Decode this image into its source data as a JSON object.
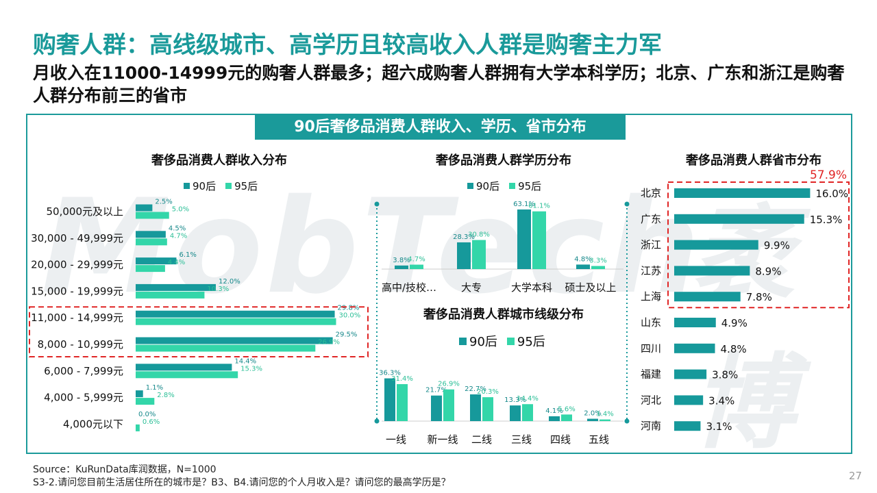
{
  "page": {
    "title": "购奢人群：高线级城市、高学历且较高收入人群是购奢主力军",
    "subtitle": "月收入在11000-14999元的购奢人群最多；超六成购奢人群拥有大学本科学历；北京、广东和浙江是购奢人群分布前三的省市",
    "banner": "90后奢侈品消费人群收入、学历、省市分布",
    "watermark": "MobTech",
    "watermark2": "袤博",
    "source_line1": "Source：KuRunData库润数据，N=1000",
    "source_line2": "S3-2.请问您目前生活居住所在的城市是？B3、B4.请问您的个人月收入是？请问您的最高学历是？",
    "page_number": "27",
    "colors": {
      "accent": "#1a9a9a",
      "series_90": "#16999b",
      "series_95": "#33d6a9",
      "highlight": "#e02424"
    }
  },
  "legend_labels": {
    "s90": "90后",
    "s95": "95后"
  },
  "chart_data": [
    {
      "type": "bar",
      "orientation": "horizontal",
      "title": "奢侈品消费人群收入分布",
      "categories": [
        "50,000元及以上",
        "30,000 - 49,999元",
        "20,000 - 29,999元",
        "15,000 - 19,999元",
        "11,000 - 14,999元",
        "8,000 - 10,999元",
        "6,000 - 7,999元",
        "4,000 - 5,999元",
        "4,000元以下"
      ],
      "series": [
        {
          "name": "90后",
          "values": [
            2.5,
            4.5,
            6.1,
            12.0,
            29.8,
            29.5,
            14.4,
            1.1,
            0.0
          ],
          "labels": [
            "2.5%",
            "4.5%",
            "6.1%",
            "12.0%",
            "29.8%",
            "29.5%",
            "14.4%",
            "1.1%",
            "0.0%"
          ]
        },
        {
          "name": "95后",
          "values": [
            5.0,
            4.7,
            4.4,
            10.3,
            30.0,
            26.9,
            15.3,
            2.8,
            0.6
          ],
          "labels": [
            "5.0%",
            "4.7%",
            "4.4%",
            "10.3%",
            "30.0%",
            "26.9%",
            "15.3%",
            "2.8%",
            "0.6%"
          ]
        }
      ],
      "highlight_categories": [
        "11,000 - 14,999元",
        "8,000 - 10,999元"
      ]
    },
    {
      "type": "bar",
      "title": "奢侈品消费人群学历分布",
      "categories": [
        "高中/技校…",
        "大专",
        "大学本科",
        "硕士及以上"
      ],
      "series": [
        {
          "name": "90后",
          "values": [
            3.8,
            28.3,
            63.1,
            4.8
          ],
          "labels": [
            "3.8%",
            "28.3%",
            "63.1%",
            "4.8%"
          ]
        },
        {
          "name": "95后",
          "values": [
            4.7,
            30.8,
            61.1,
            3.3
          ],
          "labels": [
            "4.7%",
            "30.8%",
            "61.1%",
            "3.3%"
          ]
        }
      ]
    },
    {
      "type": "bar",
      "title": "奢侈品消费人群城市线级分布",
      "categories": [
        "一线",
        "新一线",
        "二线",
        "三线",
        "四线",
        "五线"
      ],
      "series": [
        {
          "name": "90后",
          "values": [
            36.3,
            21.7,
            22.7,
            13.3,
            4.1,
            2.0
          ],
          "labels": [
            "36.3%",
            "21.7%",
            "22.7%",
            "13.3%",
            "4.1%",
            "2.0%"
          ]
        },
        {
          "name": "95后",
          "values": [
            31.4,
            26.9,
            20.3,
            14.4,
            5.6,
            1.4
          ],
          "labels": [
            "31.4%",
            "26.9%",
            "20.3%",
            "14.4%",
            "5.6%",
            "1.4%"
          ]
        }
      ]
    },
    {
      "type": "bar",
      "orientation": "horizontal",
      "title": "奢侈品消费人群省市分布",
      "categories": [
        "北京",
        "广东",
        "浙江",
        "江苏",
        "上海",
        "山东",
        "四川",
        "福建",
        "河北",
        "河南"
      ],
      "values": [
        16.0,
        15.3,
        9.9,
        8.9,
        7.8,
        4.9,
        4.8,
        3.8,
        3.4,
        3.1
      ],
      "labels": [
        "16.0%",
        "15.3%",
        "9.9%",
        "8.9%",
        "7.8%",
        "4.9%",
        "4.8%",
        "3.8%",
        "3.4%",
        "3.1%"
      ],
      "highlight_total": "57.9%"
    }
  ]
}
